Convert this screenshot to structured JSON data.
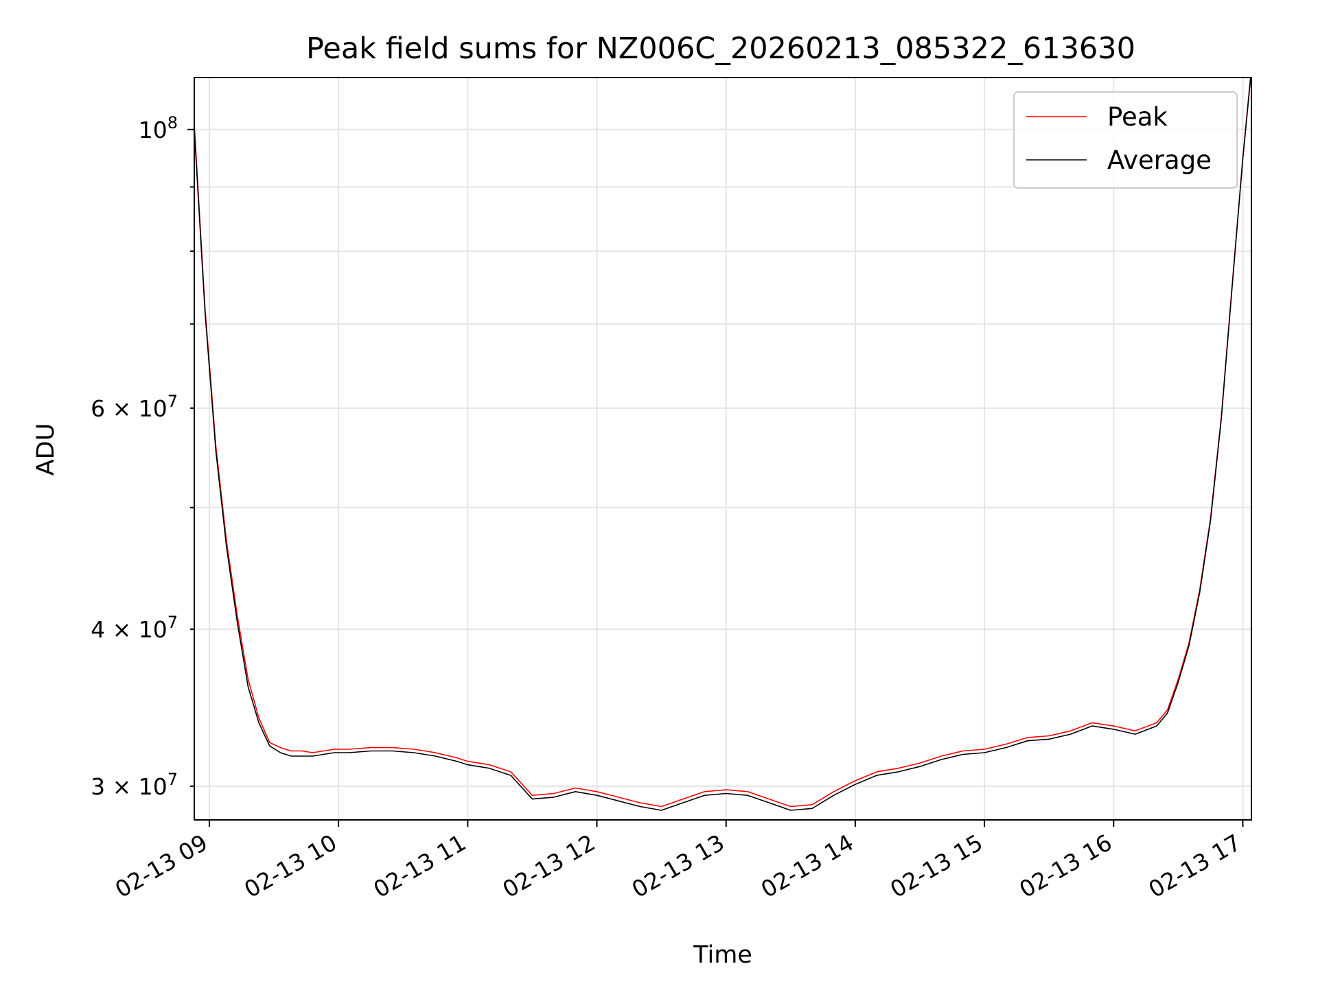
{
  "chart_data": {
    "type": "line",
    "title": "Peak field sums for NZ006C_20260213_085322_613630",
    "xlabel": "Time",
    "ylabel": "ADU",
    "y_scale": "log",
    "xlim": [
      "2026-02-13 08:53",
      "2026-02-13 17:04"
    ],
    "ylim": [
      28200000,
      110000000
    ],
    "x_ticks": [
      {
        "value": "2026-02-13 09:00",
        "label": "02-13 09"
      },
      {
        "value": "2026-02-13 10:00",
        "label": "02-13 10"
      },
      {
        "value": "2026-02-13 11:00",
        "label": "02-13 11"
      },
      {
        "value": "2026-02-13 12:00",
        "label": "02-13 12"
      },
      {
        "value": "2026-02-13 13:00",
        "label": "02-13 13"
      },
      {
        "value": "2026-02-13 14:00",
        "label": "02-13 14"
      },
      {
        "value": "2026-02-13 15:00",
        "label": "02-13 15"
      },
      {
        "value": "2026-02-13 16:00",
        "label": "02-13 16"
      },
      {
        "value": "2026-02-13 17:00",
        "label": "02-13 17"
      }
    ],
    "y_major_ticks": [
      {
        "value": 100000000,
        "mantissa": "10",
        "exp": "8"
      }
    ],
    "y_minor_ticks": [
      {
        "value": 30000000,
        "mantissa": "3 × 10",
        "exp": "7"
      },
      {
        "value": 40000000,
        "mantissa": "4 × 10",
        "exp": "7"
      },
      {
        "value": 60000000,
        "mantissa": "6 × 10",
        "exp": "7"
      }
    ],
    "y_unlabeled_minor": [
      50000000,
      70000000,
      80000000,
      90000000
    ],
    "grid": true,
    "legend_position": "top-right",
    "series": [
      {
        "name": "Peak",
        "color": "#ff0000",
        "points": [
          [
            "2026-02-13 08:53",
            101000000
          ],
          [
            "2026-02-13 08:58",
            72000000
          ],
          [
            "2026-02-13 09:03",
            56000000
          ],
          [
            "2026-02-13 09:08",
            47000000
          ],
          [
            "2026-02-13 09:13",
            41000000
          ],
          [
            "2026-02-13 09:18",
            36500000
          ],
          [
            "2026-02-13 09:23",
            34000000
          ],
          [
            "2026-02-13 09:28",
            32500000
          ],
          [
            "2026-02-13 09:33",
            32200000
          ],
          [
            "2026-02-13 09:38",
            32000000
          ],
          [
            "2026-02-13 09:43",
            32000000
          ],
          [
            "2026-02-13 09:48",
            31900000
          ],
          [
            "2026-02-13 09:53",
            32000000
          ],
          [
            "2026-02-13 09:58",
            32100000
          ],
          [
            "2026-02-13 10:05",
            32100000
          ],
          [
            "2026-02-13 10:15",
            32200000
          ],
          [
            "2026-02-13 10:25",
            32200000
          ],
          [
            "2026-02-13 10:35",
            32100000
          ],
          [
            "2026-02-13 10:45",
            31900000
          ],
          [
            "2026-02-13 10:55",
            31600000
          ],
          [
            "2026-02-13 11:00",
            31400000
          ],
          [
            "2026-02-13 11:10",
            31200000
          ],
          [
            "2026-02-13 11:20",
            30800000
          ],
          [
            "2026-02-13 11:30",
            29500000
          ],
          [
            "2026-02-13 11:40",
            29600000
          ],
          [
            "2026-02-13 11:50",
            29900000
          ],
          [
            "2026-02-13 12:00",
            29700000
          ],
          [
            "2026-02-13 12:10",
            29400000
          ],
          [
            "2026-02-13 12:20",
            29100000
          ],
          [
            "2026-02-13 12:30",
            28900000
          ],
          [
            "2026-02-13 12:40",
            29300000
          ],
          [
            "2026-02-13 12:50",
            29700000
          ],
          [
            "2026-02-13 13:00",
            29800000
          ],
          [
            "2026-02-13 13:10",
            29700000
          ],
          [
            "2026-02-13 13:20",
            29300000
          ],
          [
            "2026-02-13 13:30",
            28900000
          ],
          [
            "2026-02-13 13:40",
            29000000
          ],
          [
            "2026-02-13 13:50",
            29700000
          ],
          [
            "2026-02-13 14:00",
            30300000
          ],
          [
            "2026-02-13 14:10",
            30800000
          ],
          [
            "2026-02-13 14:20",
            31000000
          ],
          [
            "2026-02-13 14:30",
            31300000
          ],
          [
            "2026-02-13 14:40",
            31700000
          ],
          [
            "2026-02-13 14:50",
            32000000
          ],
          [
            "2026-02-13 15:00",
            32100000
          ],
          [
            "2026-02-13 15:10",
            32400000
          ],
          [
            "2026-02-13 15:20",
            32800000
          ],
          [
            "2026-02-13 15:30",
            32900000
          ],
          [
            "2026-02-13 15:40",
            33200000
          ],
          [
            "2026-02-13 15:50",
            33700000
          ],
          [
            "2026-02-13 16:00",
            33500000
          ],
          [
            "2026-02-13 16:10",
            33200000
          ],
          [
            "2026-02-13 16:20",
            33700000
          ],
          [
            "2026-02-13 16:25",
            34500000
          ],
          [
            "2026-02-13 16:30",
            36500000
          ],
          [
            "2026-02-13 16:35",
            39000000
          ],
          [
            "2026-02-13 16:40",
            43000000
          ],
          [
            "2026-02-13 16:45",
            49000000
          ],
          [
            "2026-02-13 16:50",
            59000000
          ],
          [
            "2026-02-13 16:55",
            75000000
          ],
          [
            "2026-02-13 17:00",
            95000000
          ],
          [
            "2026-02-13 17:04",
            112000000
          ]
        ]
      },
      {
        "name": "Average",
        "color": "#000000",
        "points": [
          [
            "2026-02-13 08:53",
            100000000
          ],
          [
            "2026-02-13 08:58",
            71500000
          ],
          [
            "2026-02-13 09:03",
            55500000
          ],
          [
            "2026-02-13 09:08",
            46500000
          ],
          [
            "2026-02-13 09:13",
            40500000
          ],
          [
            "2026-02-13 09:18",
            36000000
          ],
          [
            "2026-02-13 09:23",
            33700000
          ],
          [
            "2026-02-13 09:28",
            32300000
          ],
          [
            "2026-02-13 09:33",
            31900000
          ],
          [
            "2026-02-13 09:38",
            31700000
          ],
          [
            "2026-02-13 09:43",
            31700000
          ],
          [
            "2026-02-13 09:48",
            31700000
          ],
          [
            "2026-02-13 09:53",
            31800000
          ],
          [
            "2026-02-13 09:58",
            31900000
          ],
          [
            "2026-02-13 10:05",
            31900000
          ],
          [
            "2026-02-13 10:15",
            32000000
          ],
          [
            "2026-02-13 10:25",
            32000000
          ],
          [
            "2026-02-13 10:35",
            31900000
          ],
          [
            "2026-02-13 10:45",
            31700000
          ],
          [
            "2026-02-13 10:55",
            31400000
          ],
          [
            "2026-02-13 11:00",
            31200000
          ],
          [
            "2026-02-13 11:10",
            31000000
          ],
          [
            "2026-02-13 11:20",
            30600000
          ],
          [
            "2026-02-13 11:30",
            29300000
          ],
          [
            "2026-02-13 11:40",
            29400000
          ],
          [
            "2026-02-13 11:50",
            29700000
          ],
          [
            "2026-02-13 12:00",
            29500000
          ],
          [
            "2026-02-13 12:10",
            29200000
          ],
          [
            "2026-02-13 12:20",
            28900000
          ],
          [
            "2026-02-13 12:30",
            28700000
          ],
          [
            "2026-02-13 12:40",
            29100000
          ],
          [
            "2026-02-13 12:50",
            29500000
          ],
          [
            "2026-02-13 13:00",
            29600000
          ],
          [
            "2026-02-13 13:10",
            29500000
          ],
          [
            "2026-02-13 13:20",
            29100000
          ],
          [
            "2026-02-13 13:30",
            28700000
          ],
          [
            "2026-02-13 13:40",
            28800000
          ],
          [
            "2026-02-13 13:50",
            29500000
          ],
          [
            "2026-02-13 14:00",
            30100000
          ],
          [
            "2026-02-13 14:10",
            30600000
          ],
          [
            "2026-02-13 14:20",
            30800000
          ],
          [
            "2026-02-13 14:30",
            31100000
          ],
          [
            "2026-02-13 14:40",
            31500000
          ],
          [
            "2026-02-13 14:50",
            31800000
          ],
          [
            "2026-02-13 15:00",
            31900000
          ],
          [
            "2026-02-13 15:10",
            32200000
          ],
          [
            "2026-02-13 15:20",
            32600000
          ],
          [
            "2026-02-13 15:30",
            32700000
          ],
          [
            "2026-02-13 15:40",
            33000000
          ],
          [
            "2026-02-13 15:50",
            33500000
          ],
          [
            "2026-02-13 16:00",
            33300000
          ],
          [
            "2026-02-13 16:10",
            33000000
          ],
          [
            "2026-02-13 16:20",
            33500000
          ],
          [
            "2026-02-13 16:25",
            34300000
          ],
          [
            "2026-02-13 16:30",
            36300000
          ],
          [
            "2026-02-13 16:35",
            38800000
          ],
          [
            "2026-02-13 16:40",
            42800000
          ],
          [
            "2026-02-13 16:45",
            48800000
          ],
          [
            "2026-02-13 16:50",
            58800000
          ],
          [
            "2026-02-13 16:55",
            74800000
          ],
          [
            "2026-02-13 17:00",
            94800000
          ],
          [
            "2026-02-13 17:04",
            111500000
          ]
        ]
      }
    ]
  }
}
